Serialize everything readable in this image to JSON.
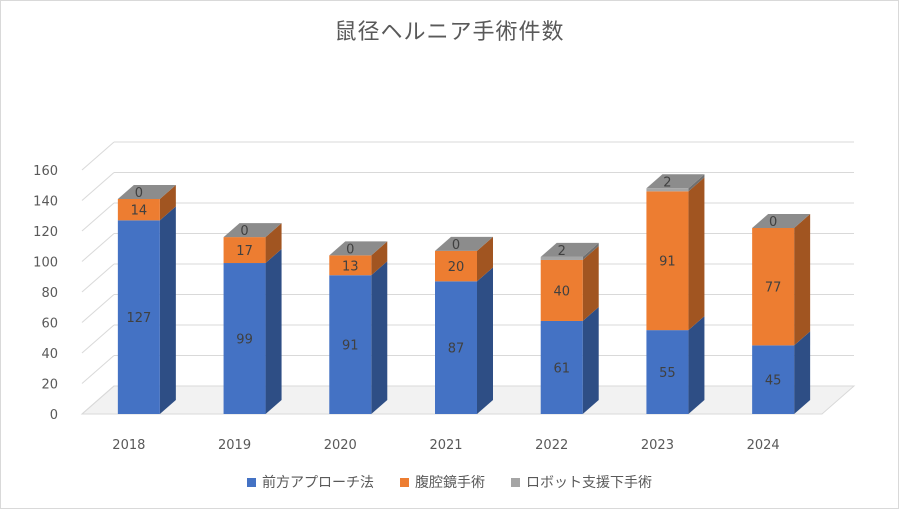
{
  "chart_data": {
    "type": "bar",
    "stacked": true,
    "style_3d": true,
    "title": "鼠径ヘルニア手術件数",
    "xlabel": "",
    "ylabel": "",
    "categories": [
      "2018",
      "2019",
      "2020",
      "2021",
      "2022",
      "2023",
      "2024"
    ],
    "y_ticks": [
      "0",
      "20",
      "40",
      "60",
      "80",
      "100",
      "120",
      "140",
      "160"
    ],
    "ylim": [
      0,
      160
    ],
    "grid": true,
    "legend_position": "bottom",
    "series": [
      {
        "name": "前方アプローチ法",
        "color": "#4472c4",
        "values": [
          127,
          99,
          91,
          87,
          61,
          55,
          45
        ]
      },
      {
        "name": "腹腔鏡手術",
        "color": "#ed7d31",
        "values": [
          14,
          17,
          13,
          20,
          40,
          91,
          77
        ]
      },
      {
        "name": "ロボット支援下手術",
        "color": "#a5a5a5",
        "values": [
          0,
          0,
          0,
          0,
          2,
          2,
          0
        ]
      }
    ]
  }
}
